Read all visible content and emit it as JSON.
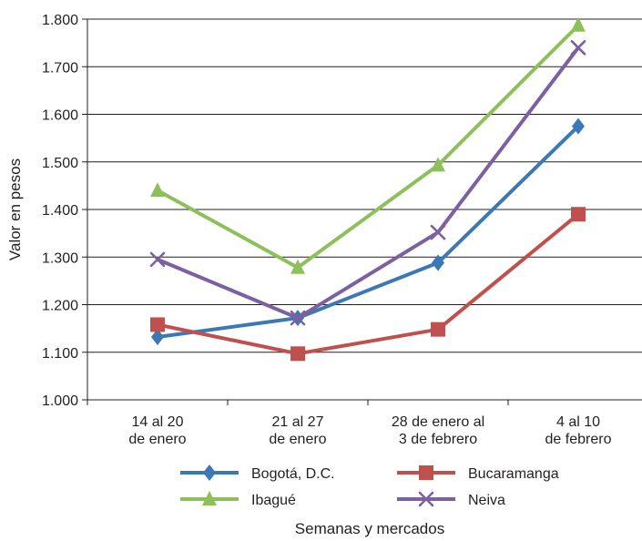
{
  "chart_data": {
    "type": "line",
    "ylabel": "Valor en pesos",
    "xlabel": "Semanas y mercados",
    "ylim": [
      1000,
      1800
    ],
    "yticks": [
      1000,
      1100,
      1200,
      1300,
      1400,
      1500,
      1600,
      1700,
      1800
    ],
    "ytick_labels": [
      "1.000",
      "1.100",
      "1.200",
      "1.300",
      "1.400",
      "1.500",
      "1.600",
      "1.700",
      "1.800"
    ],
    "categories": [
      [
        "14 al 20",
        "de enero"
      ],
      [
        "21 al 27",
        "de enero"
      ],
      [
        "28 de enero al",
        "3 de febrero"
      ],
      [
        "4 al 10",
        "de febrero"
      ]
    ],
    "grid": "horizontal",
    "legend_position": "bottom",
    "series": [
      {
        "name": "Bogotá, D.C.",
        "marker": "diamond",
        "color": "#3c78b5",
        "values": [
          1132,
          1172,
          1288,
          1575
        ]
      },
      {
        "name": "Bucaramanga",
        "marker": "square",
        "color": "#c0504d",
        "values": [
          1158,
          1097,
          1148,
          1390
        ]
      },
      {
        "name": "Ibagué",
        "marker": "triangle",
        "color": "#8dc05a",
        "values": [
          1440,
          1278,
          1493,
          1787
        ]
      },
      {
        "name": "Neiva",
        "marker": "x",
        "color": "#7d60a0",
        "values": [
          1295,
          1172,
          1352,
          1740
        ]
      }
    ]
  }
}
